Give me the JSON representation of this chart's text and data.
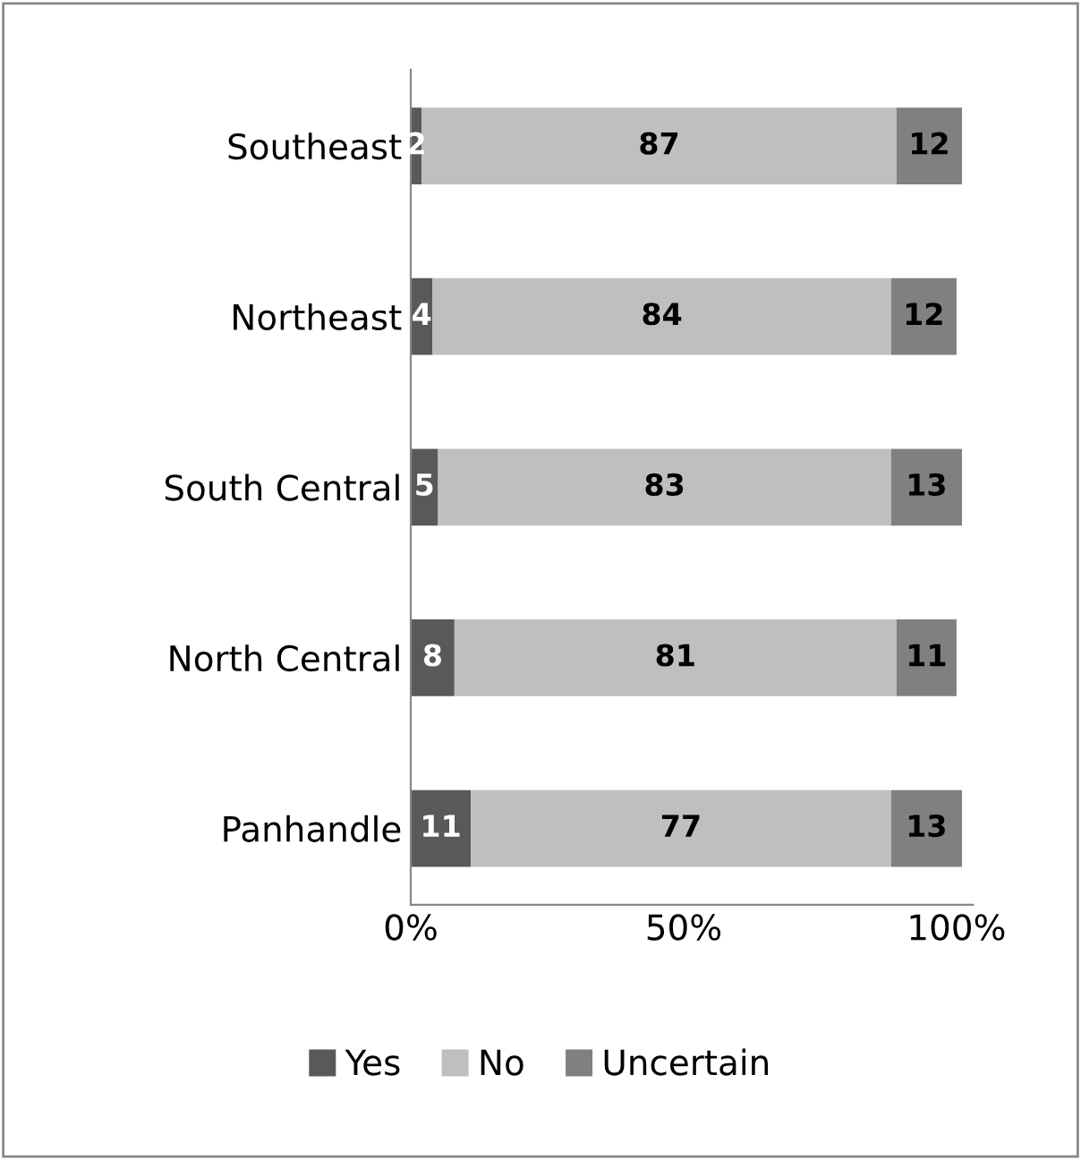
{
  "chart_data": {
    "type": "bar",
    "orientation": "horizontal",
    "stacked": true,
    "categories": [
      "Southeast",
      "Northeast",
      "South Central",
      "North Central",
      "Panhandle"
    ],
    "series": [
      {
        "name": "Yes",
        "color": "#595959",
        "values": [
          2,
          4,
          5,
          8,
          11
        ]
      },
      {
        "name": "No",
        "color": "#bfbfbf",
        "values": [
          87,
          84,
          83,
          81,
          77
        ]
      },
      {
        "name": "Uncertain",
        "color": "#808080",
        "values": [
          12,
          12,
          13,
          11,
          13
        ]
      }
    ],
    "xlim": [
      0,
      103
    ],
    "xticks": [
      {
        "value": 0,
        "label": "0%"
      },
      {
        "value": 50,
        "label": "50%"
      },
      {
        "value": 100,
        "label": "100%"
      }
    ],
    "data_labels": true,
    "legend": "bottom",
    "grid": false
  }
}
